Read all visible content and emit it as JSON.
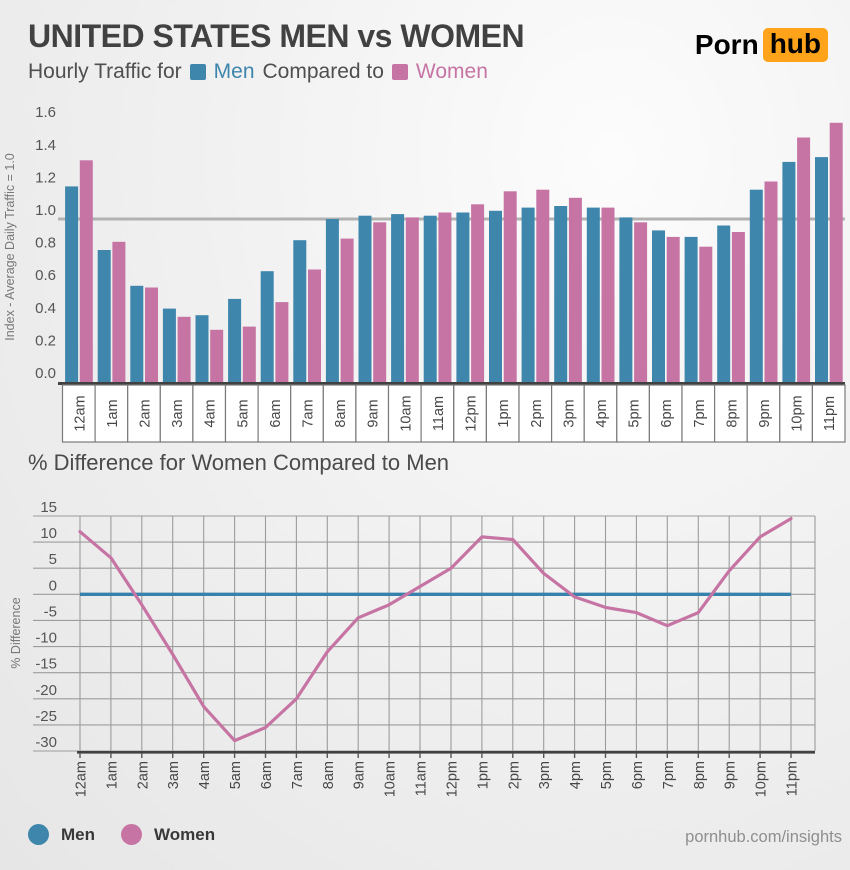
{
  "header": {
    "title": "UNITED STATES MEN vs WOMEN",
    "subtitle_prefix": "Hourly Traffic for",
    "subtitle_men": "Men",
    "subtitle_middle": "Compared to",
    "subtitle_women": "Women",
    "logo_porn": "Porn",
    "logo_hub": "hub"
  },
  "colors": {
    "men": "#3e86ac",
    "women": "#c674a3",
    "men_line": "#3781ad",
    "logo_orange": "#ffa31a",
    "reference_line": "#b2b2b2",
    "axis_dark": "#414141",
    "grid": "#9c9c9c"
  },
  "section2_title": "% Difference for Women Compared to Men",
  "footer": {
    "legend": [
      {
        "label": "Men",
        "color": "#3e86ac"
      },
      {
        "label": "Women",
        "color": "#c674a3"
      }
    ],
    "site": "pornhub.com/insights"
  },
  "chart_data": [
    {
      "type": "bar",
      "title": "Hourly Traffic for Men Compared to Women",
      "ylabel": "Index - Average Daily Traffic = 1.0",
      "xlabel": "",
      "categories": [
        "12am",
        "1am",
        "2am",
        "3am",
        "4am",
        "5am",
        "6am",
        "7am",
        "8am",
        "9am",
        "10am",
        "11am",
        "12pm",
        "1pm",
        "2pm",
        "3pm",
        "4pm",
        "5pm",
        "6pm",
        "7pm",
        "8pm",
        "9pm",
        "10pm",
        "11pm"
      ],
      "series": [
        {
          "name": "Men",
          "color": "#3e86ac",
          "values": [
            1.2,
            0.81,
            0.59,
            0.45,
            0.41,
            0.51,
            0.68,
            0.87,
            1.0,
            1.02,
            1.03,
            1.02,
            1.04,
            1.05,
            1.07,
            1.08,
            1.07,
            1.01,
            0.93,
            0.89,
            0.96,
            1.18,
            1.35,
            1.38
          ]
        },
        {
          "name": "Women",
          "color": "#c674a3",
          "values": [
            1.36,
            0.86,
            0.58,
            0.4,
            0.32,
            0.34,
            0.49,
            0.69,
            0.88,
            0.98,
            1.01,
            1.04,
            1.09,
            1.17,
            1.18,
            1.13,
            1.07,
            0.98,
            0.89,
            0.83,
            0.92,
            1.23,
            1.5,
            1.59
          ]
        }
      ],
      "yticks": [
        0.0,
        0.2,
        0.4,
        0.6,
        0.8,
        1.0,
        1.2,
        1.4,
        1.6
      ],
      "ylim": [
        0,
        1.65
      ],
      "reference_line": 1.0,
      "grid": false,
      "legend_position": "bottom"
    },
    {
      "type": "line",
      "title": "% Difference for Women Compared to Men",
      "ylabel": "% Difference",
      "xlabel": "",
      "categories": [
        "12am",
        "1am",
        "2am",
        "3am",
        "4am",
        "5am",
        "6am",
        "7am",
        "8am",
        "9am",
        "10am",
        "11am",
        "12pm",
        "1pm",
        "2pm",
        "3pm",
        "4pm",
        "5pm",
        "6pm",
        "7pm",
        "8pm",
        "9pm",
        "10pm",
        "11pm"
      ],
      "series": [
        {
          "name": "Men",
          "color": "#3781ad",
          "baseline": true,
          "values": [
            0,
            0,
            0,
            0,
            0,
            0,
            0,
            0,
            0,
            0,
            0,
            0,
            0,
            0,
            0,
            0,
            0,
            0,
            0,
            0,
            0,
            0,
            0,
            0
          ]
        },
        {
          "name": "Women",
          "color": "#c674a3",
          "values": [
            12,
            7,
            -2,
            -11.5,
            -21.5,
            -28,
            -25.5,
            -20,
            -11,
            -4.5,
            -2,
            1.5,
            5,
            11,
            10.5,
            4,
            -0.5,
            -2.5,
            -3.5,
            -6,
            -3.5,
            4.5,
            11,
            14.5
          ]
        }
      ],
      "yticks": [
        15,
        10,
        5,
        0,
        -5,
        -10,
        -15,
        -20,
        -25,
        -30
      ],
      "ylim": [
        -30,
        15
      ],
      "grid": true,
      "legend_position": "bottom"
    }
  ]
}
